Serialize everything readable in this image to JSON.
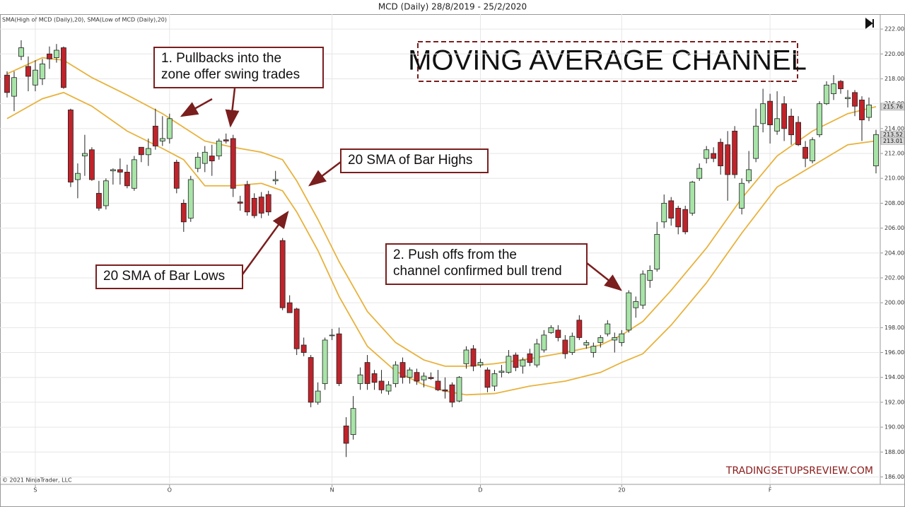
{
  "chart_data": {
    "type": "candlestick",
    "header": "MCD (Daily)  28/8/2019 - 25/2/2020",
    "indicator_label": "SMA(High of MCD (Daily),20), SMA(Low of MCD (Daily),20)",
    "title": "MOVING AVERAGE CHANNEL",
    "watermark": "TRADINGSETUPSREVIEW.COM",
    "copyright": "© 2021 NinjaTrader, LLC",
    "annotations": [
      {
        "lines": [
          "1. Pullbacks into the",
          "zone offer swing trades"
        ]
      },
      {
        "lines": [
          "20 SMA of Bar Highs"
        ]
      },
      {
        "lines": [
          "20 SMA of Bar Lows"
        ]
      },
      {
        "lines": [
          "2. Push offs from the",
          "channel confirmed bull trend"
        ]
      }
    ],
    "up_color": "#a8e4a8",
    "down_color": "#c0232a",
    "open": [
      218.3,
      216.6,
      219.8,
      219.0,
      217.5,
      218.0,
      220.0,
      219.7,
      220.5,
      215.5,
      209.9,
      211.8,
      212.3,
      208.8,
      207.8,
      210.6,
      210.7,
      210.5,
      209.2,
      212.5,
      211.9,
      214.2,
      213.0,
      213.2,
      211.3,
      208.0,
      206.8,
      210.8,
      211.2,
      211.8,
      211.8,
      213.1,
      213.2,
      208.1,
      209.5,
      208.4,
      208.5,
      208.7,
      209.8,
      205.0,
      200.0,
      199.5,
      196.6,
      195.6,
      192.0,
      193.5,
      197.4,
      197.5,
      190.1,
      189.4,
      193.5,
      195.2,
      194.3,
      193.7,
      192.9,
      193.5,
      195.2,
      194.0,
      194.4,
      193.8,
      194.0,
      193.7,
      193.0,
      193.4,
      192.1,
      195.1,
      196.3,
      195.0,
      194.6,
      193.3,
      194.4,
      194.4,
      195.8,
      194.9,
      195.9,
      195.0,
      196.2,
      197.6,
      197.8,
      197.0,
      196.0,
      198.6,
      196.6,
      196.0,
      196.8,
      197.5,
      197.0,
      196.8,
      197.8,
      199.6,
      199.8,
      201.8,
      202.7,
      206.5,
      208.2,
      207.6,
      207.5,
      207.2,
      210.0,
      211.6,
      212.0,
      212.9,
      212.7,
      213.8,
      207.6,
      209.8,
      211.6,
      214.4,
      216.2,
      213.8,
      216.0,
      215.0,
      214.5,
      212.5,
      211.4,
      213.5,
      216.0,
      216.8,
      217.8,
      216.4,
      216.9,
      216.3,
      214.9,
      211.0
    ],
    "high": [
      218.6,
      218.6,
      221.1,
      219.8,
      219.5,
      219.6,
      220.6,
      220.8,
      220.6,
      215.6,
      211.2,
      213.5,
      212.5,
      209.8,
      210.0,
      210.8,
      211.6,
      211.1,
      211.8,
      212.5,
      213.2,
      215.6,
      215.0,
      215.2,
      211.5,
      208.3,
      210.2,
      212.1,
      212.6,
      212.7,
      213.2,
      213.6,
      213.5,
      208.6,
      209.8,
      208.8,
      208.9,
      209.0,
      210.6,
      205.2,
      200.6,
      199.6,
      197.2,
      195.8,
      193.6,
      197.2,
      197.9,
      198.0,
      190.8,
      192.5,
      194.8,
      195.8,
      194.6,
      194.6,
      193.7,
      195.3,
      195.6,
      194.8,
      194.7,
      194.4,
      194.4,
      194.6,
      194.0,
      193.6,
      194.1,
      196.5,
      196.6,
      195.5,
      194.8,
      194.6,
      195.0,
      196.2,
      196.0,
      195.6,
      196.3,
      197.1,
      197.8,
      198.2,
      198.2,
      197.4,
      197.6,
      199.0,
      197.0,
      196.8,
      197.4,
      198.6,
      197.6,
      197.8,
      201.0,
      200.5,
      202.6,
      203.0,
      206.5,
      208.7,
      208.5,
      207.8,
      207.8,
      209.8,
      211.2,
      212.6,
      212.5,
      213.2,
      213.8,
      214.2,
      210.0,
      212.2,
      215.6,
      217.2,
      216.8,
      217.0,
      216.6,
      215.6,
      215.0,
      213.0,
      213.3,
      216.2,
      217.8,
      218.3,
      217.9,
      217.1,
      217.1,
      216.6,
      216.5,
      213.9
    ],
    "low": [
      216.5,
      215.4,
      219.5,
      217.0,
      217.0,
      217.5,
      218.8,
      219.3,
      217.2,
      209.3,
      208.4,
      210.2,
      209.8,
      207.4,
      207.5,
      209.5,
      209.5,
      209.2,
      209.0,
      211.3,
      211.0,
      212.3,
      212.6,
      212.8,
      208.8,
      205.7,
      206.5,
      210.5,
      210.5,
      210.2,
      211.5,
      212.8,
      208.5,
      207.4,
      207.0,
      206.8,
      206.8,
      207.0,
      209.5,
      199.4,
      199.3,
      195.8,
      195.7,
      191.6,
      191.8,
      193.0,
      197.0,
      193.3,
      187.6,
      189.0,
      193.0,
      193.0,
      193.0,
      192.7,
      192.6,
      193.2,
      193.5,
      193.5,
      193.4,
      193.2,
      193.8,
      192.9,
      192.3,
      191.6,
      192.0,
      194.7,
      194.5,
      194.8,
      192.8,
      192.9,
      194.0,
      194.3,
      194.5,
      194.3,
      194.9,
      194.8,
      196.0,
      197.5,
      196.9,
      195.5,
      195.8,
      197.0,
      196.3,
      195.6,
      196.4,
      197.3,
      196.0,
      196.5,
      197.6,
      198.8,
      199.5,
      201.2,
      202.5,
      206.0,
      206.2,
      205.5,
      205.5,
      207.0,
      209.8,
      211.2,
      211.3,
      210.3,
      208.2,
      210.0,
      207.1,
      209.6,
      211.3,
      213.7,
      212.8,
      213.5,
      213.0,
      212.7,
      212.6,
      210.9,
      211.2,
      213.3,
      215.9,
      216.3,
      216.8,
      215.7,
      215.0,
      213.0,
      214.6,
      210.4
    ],
    "close": [
      216.9,
      218.1,
      220.5,
      218.2,
      218.7,
      219.2,
      219.6,
      220.3,
      217.3,
      209.7,
      210.4,
      212.0,
      209.9,
      207.6,
      209.8,
      210.7,
      210.5,
      209.4,
      211.5,
      211.9,
      212.4,
      212.6,
      213.2,
      214.8,
      209.2,
      206.5,
      209.9,
      211.7,
      212.1,
      211.4,
      213.0,
      213.0,
      209.2,
      208.0,
      207.3,
      207.0,
      207.2,
      207.3,
      209.9,
      199.6,
      199.2,
      196.3,
      196.0,
      192.0,
      192.9,
      197.0,
      197.4,
      193.5,
      188.7,
      191.5,
      194.2,
      193.5,
      193.6,
      193.0,
      193.4,
      195.0,
      194.0,
      194.6,
      193.7,
      194.1,
      193.9,
      193.0,
      192.9,
      192.0,
      194.0,
      196.2,
      194.9,
      195.2,
      193.2,
      194.3,
      194.5,
      195.7,
      194.8,
      195.4,
      195.2,
      196.7,
      197.4,
      198.0,
      197.2,
      195.9,
      197.3,
      197.2,
      196.8,
      196.5,
      197.2,
      198.3,
      197.2,
      197.5,
      200.8,
      200.1,
      202.3,
      202.6,
      205.5,
      208.0,
      206.8,
      206.1,
      205.7,
      209.7,
      210.8,
      212.3,
      211.6,
      211.0,
      210.3,
      210.3,
      209.6,
      210.7,
      214.2,
      216.0,
      214.3,
      214.8,
      214.0,
      213.5,
      212.7,
      211.6,
      213.1,
      216.0,
      217.5,
      217.6,
      217.2,
      216.5,
      215.8,
      214.7,
      215.9,
      213.52
    ],
    "overlay_x": [
      0,
      5,
      8,
      12,
      17,
      22,
      25,
      28,
      32,
      36,
      39,
      41,
      44,
      47,
      51,
      55,
      59,
      62,
      65,
      69,
      74,
      79,
      84,
      87,
      90,
      94,
      99,
      104,
      109,
      114,
      119,
      123
    ],
    "overlays": [
      {
        "color": "#e8b23c",
        "values": [
          218.4,
          219.7,
          219.5,
          218.1,
          216.7,
          215.2,
          214.1,
          213.0,
          212.5,
          212.1,
          211.5,
          209.8,
          206.7,
          203.3,
          199.3,
          196.8,
          195.4,
          194.9,
          194.9,
          195.1,
          195.5,
          196.0,
          196.6,
          197.4,
          198.5,
          201.0,
          204.4,
          208.4,
          211.8,
          213.8,
          215.2,
          215.76
        ]
      },
      {
        "color": "#e8b23c",
        "values": [
          214.8,
          216.4,
          216.9,
          215.8,
          213.8,
          212.4,
          211.5,
          209.4,
          209.4,
          209.6,
          209.0,
          207.3,
          204.2,
          200.5,
          196.5,
          194.5,
          193.4,
          192.9,
          192.6,
          192.7,
          193.3,
          193.7,
          194.4,
          195.2,
          195.9,
          198.2,
          201.6,
          205.6,
          209.3,
          211.0,
          212.7,
          213.01
        ]
      }
    ],
    "xlim": [
      -1,
      123.6
    ],
    "xticks": [
      {
        "value": 4,
        "label": "S"
      },
      {
        "value": 23,
        "label": "O"
      },
      {
        "value": 46,
        "label": "N"
      },
      {
        "value": 67,
        "label": "D"
      },
      {
        "value": 87,
        "label": "20"
      },
      {
        "value": 108,
        "label": "F"
      }
    ],
    "ylim": [
      185.4,
      223.2
    ],
    "yticks": [
      {
        "value": 186,
        "label": "186.00"
      },
      {
        "value": 188,
        "label": "188.00"
      },
      {
        "value": 190,
        "label": "190.00"
      },
      {
        "value": 192,
        "label": "192.00"
      },
      {
        "value": 194,
        "label": "194.00"
      },
      {
        "value": 196,
        "label": "196.00"
      },
      {
        "value": 198,
        "label": "198.00"
      },
      {
        "value": 200,
        "label": "200.00"
      },
      {
        "value": 202,
        "label": "202.00"
      },
      {
        "value": 204,
        "label": "204.00"
      },
      {
        "value": 206,
        "label": "206.00"
      },
      {
        "value": 208,
        "label": "208.00"
      },
      {
        "value": 210,
        "label": "210.00"
      },
      {
        "value": 212,
        "label": "212.00"
      },
      {
        "value": 214,
        "label": "214.00"
      },
      {
        "value": 216,
        "label": "216.00"
      },
      {
        "value": 218,
        "label": "218.00"
      },
      {
        "value": 220,
        "label": "220.00"
      },
      {
        "value": 222,
        "label": "222.00"
      }
    ],
    "grid": true
  }
}
